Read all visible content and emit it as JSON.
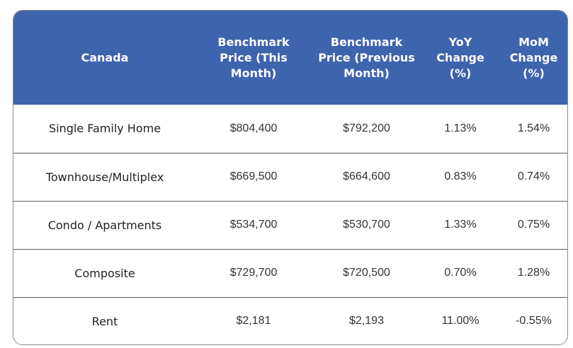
{
  "table": {
    "headers": [
      "Canada",
      "Benchmark Price (This Month)",
      "Benchmark Price (Previous Month)",
      "YoY Change (%)",
      "MoM Change (%)"
    ],
    "rows": [
      {
        "label": "Single Family Home",
        "this_month": "$804,400",
        "prev_month": "$792,200",
        "yoy": "1.13%",
        "mom": "1.54%"
      },
      {
        "label": "Townhouse/Multiplex",
        "this_month": "$669,500",
        "prev_month": "$664,600",
        "yoy": "0.83%",
        "mom": "0.74%"
      },
      {
        "label": "Condo / Apartments",
        "this_month": "$534,700",
        "prev_month": "$530,700",
        "yoy": "1.33%",
        "mom": "0.75%"
      },
      {
        "label": "Composite",
        "this_month": "$729,700",
        "prev_month": "$720,500",
        "yoy": "0.70%",
        "mom": "1.28%"
      },
      {
        "label": "Rent",
        "this_month": "$2,181",
        "prev_month": "$2,193",
        "yoy": "11.00%",
        "mom": "-0.55%"
      }
    ]
  },
  "colors": {
    "header_bg": "#3e64ae",
    "header_text": "#ffffff",
    "row_divider": "#5a5a5a",
    "card_border": "#8a8a8a"
  }
}
